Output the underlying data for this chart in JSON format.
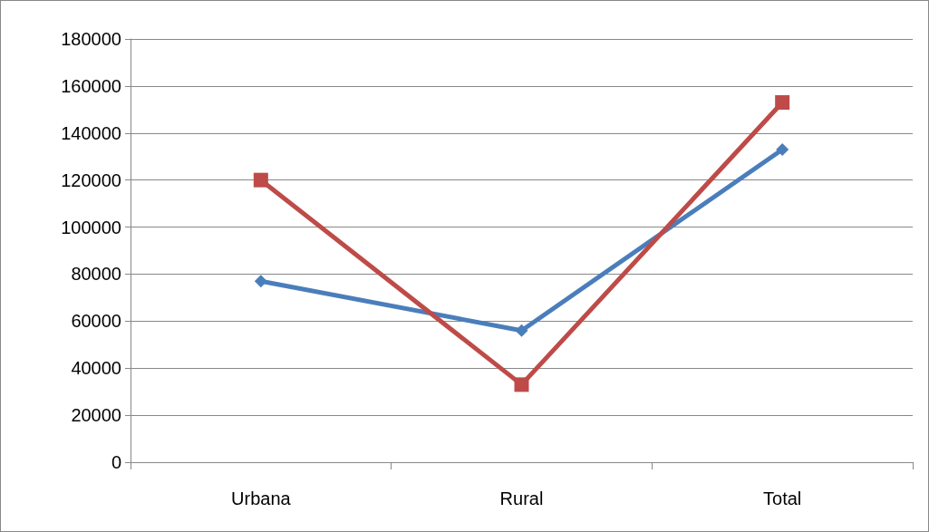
{
  "chart_data": {
    "type": "line",
    "categories": [
      "Urbana",
      "Rural",
      "Total"
    ],
    "series": [
      {
        "color": "#4a7ebb",
        "marker": "diamond",
        "values": [
          77000,
          56000,
          133000
        ]
      },
      {
        "color": "#be4b48",
        "marker": "square",
        "values": [
          120000,
          33000,
          153000
        ]
      }
    ],
    "ylim": [
      0,
      180000
    ],
    "yticks": [
      0,
      20000,
      40000,
      60000,
      80000,
      100000,
      120000,
      140000,
      160000,
      180000
    ],
    "grid": "y",
    "line_style": "solid"
  }
}
